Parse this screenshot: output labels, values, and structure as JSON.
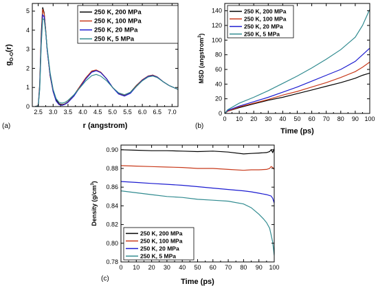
{
  "figure": {
    "panel_labels": [
      "(a)",
      "(b)",
      "(c)"
    ]
  },
  "series_colors": [
    "#000000",
    "#c8391a",
    "#1a1ad0",
    "#2f8a8f"
  ],
  "chart_data": [
    {
      "panel": "(a)",
      "type": "line",
      "xlabel": "r (angstrom)",
      "ylabel": "g",
      "ylabel_sub": "O-O",
      "ylabel_suffix": "(r)",
      "xlim": [
        2.3,
        7.2
      ],
      "ylim": [
        0,
        5.4
      ],
      "xticks": [
        "2.5",
        "3.0",
        "3.5",
        "4.0",
        "4.5",
        "5.0",
        "5.5",
        "6.0",
        "6.5",
        "7.0"
      ],
      "xtick_values": [
        2.5,
        3.0,
        3.5,
        4.0,
        4.5,
        5.0,
        5.5,
        6.0,
        6.5,
        7.0
      ],
      "yticks": [
        "0",
        "1",
        "2",
        "3",
        "4",
        "5"
      ],
      "ytick_values": [
        0,
        1,
        2,
        3,
        4,
        5
      ],
      "legend_position": "top-right",
      "series": [
        {
          "name": "250 K, 200 MPa",
          "x": [
            2.4,
            2.5,
            2.55,
            2.6,
            2.65,
            2.7,
            2.75,
            2.8,
            2.9,
            3.0,
            3.1,
            3.2,
            3.3,
            3.4,
            3.5,
            3.7,
            3.9,
            4.1,
            4.3,
            4.45,
            4.6,
            4.8,
            5.0,
            5.2,
            5.4,
            5.6,
            5.8,
            6.0,
            6.2,
            6.35,
            6.5,
            6.7,
            6.9,
            7.2
          ],
          "y": [
            0,
            0.05,
            1.2,
            3.8,
            5.2,
            4.9,
            4.0,
            3.0,
            1.6,
            0.8,
            0.35,
            0.15,
            0.1,
            0.14,
            0.25,
            0.6,
            1.05,
            1.5,
            1.85,
            1.9,
            1.8,
            1.45,
            1.0,
            0.7,
            0.6,
            0.75,
            1.1,
            1.4,
            1.6,
            1.65,
            1.55,
            1.3,
            1.1,
            0.9
          ]
        },
        {
          "name": "250 K, 100 MPa",
          "x": [
            2.4,
            2.5,
            2.55,
            2.6,
            2.65,
            2.7,
            2.75,
            2.8,
            2.9,
            3.0,
            3.1,
            3.2,
            3.3,
            3.4,
            3.5,
            3.7,
            3.9,
            4.1,
            4.3,
            4.45,
            4.6,
            4.8,
            5.0,
            5.2,
            5.4,
            5.6,
            5.8,
            6.0,
            6.2,
            6.35,
            6.5,
            6.7,
            6.9,
            7.2
          ],
          "y": [
            0,
            0.05,
            1.1,
            3.6,
            5.1,
            4.85,
            4.0,
            3.0,
            1.6,
            0.78,
            0.3,
            0.12,
            0.08,
            0.13,
            0.24,
            0.58,
            1.05,
            1.5,
            1.86,
            1.92,
            1.8,
            1.45,
            1.0,
            0.68,
            0.58,
            0.73,
            1.08,
            1.4,
            1.6,
            1.64,
            1.55,
            1.3,
            1.1,
            0.9
          ]
        },
        {
          "name": "250 K, 20 MPa",
          "x": [
            2.4,
            2.5,
            2.55,
            2.6,
            2.65,
            2.7,
            2.75,
            2.8,
            2.9,
            3.0,
            3.1,
            3.2,
            3.3,
            3.4,
            3.5,
            3.7,
            3.9,
            4.1,
            4.3,
            4.45,
            4.6,
            4.8,
            5.0,
            5.2,
            5.4,
            5.6,
            5.8,
            6.0,
            6.2,
            6.35,
            6.5,
            6.7,
            6.9,
            7.2
          ],
          "y": [
            0,
            0.04,
            1.0,
            3.4,
            4.8,
            4.7,
            3.9,
            3.0,
            1.65,
            0.8,
            0.3,
            0.1,
            0.06,
            0.12,
            0.22,
            0.55,
            1.0,
            1.45,
            1.8,
            1.88,
            1.78,
            1.45,
            1.0,
            0.66,
            0.55,
            0.7,
            1.05,
            1.38,
            1.58,
            1.62,
            1.54,
            1.3,
            1.1,
            0.9
          ]
        },
        {
          "name": "250 K, 5 MPa",
          "x": [
            2.4,
            2.5,
            2.55,
            2.6,
            2.65,
            2.7,
            2.75,
            2.8,
            2.9,
            3.0,
            3.1,
            3.2,
            3.3,
            3.4,
            3.5,
            3.7,
            3.9,
            4.1,
            4.3,
            4.45,
            4.6,
            4.8,
            5.0,
            5.2,
            5.4,
            5.6,
            5.8,
            6.0,
            6.2,
            6.35,
            6.5,
            6.7,
            6.9,
            7.2
          ],
          "y": [
            0,
            0.04,
            0.9,
            3.2,
            4.6,
            4.55,
            3.9,
            3.1,
            1.75,
            0.9,
            0.42,
            0.22,
            0.18,
            0.22,
            0.32,
            0.62,
            0.98,
            1.35,
            1.62,
            1.68,
            1.6,
            1.35,
            1.0,
            0.72,
            0.62,
            0.75,
            1.05,
            1.35,
            1.55,
            1.6,
            1.52,
            1.3,
            1.1,
            0.9
          ]
        }
      ]
    },
    {
      "panel": "(b)",
      "type": "line",
      "xlabel": "Time (ps)",
      "ylabel": "MSD (angstrom",
      "ylabel_sup": "2",
      "ylabel_suffix": ")",
      "xlim": [
        0,
        100
      ],
      "ylim": [
        0,
        150
      ],
      "xticks": [
        "0",
        "10",
        "20",
        "30",
        "40",
        "50",
        "60",
        "70",
        "80",
        "90",
        "100"
      ],
      "xtick_values": [
        0,
        10,
        20,
        30,
        40,
        50,
        60,
        70,
        80,
        90,
        100
      ],
      "yticks": [
        "0",
        "20",
        "40",
        "60",
        "80",
        "100",
        "120",
        "140"
      ],
      "ytick_values": [
        0,
        20,
        40,
        60,
        80,
        100,
        120,
        140
      ],
      "legend_position": "top-left",
      "series": [
        {
          "name": "250 K, 200 MPa",
          "x": [
            0,
            2,
            10,
            20,
            30,
            40,
            50,
            60,
            70,
            80,
            90,
            95,
            100
          ],
          "y": [
            0,
            3,
            8,
            13,
            18,
            22,
            27,
            32,
            37,
            42,
            48,
            52,
            55
          ]
        },
        {
          "name": "250 K, 100 MPa",
          "x": [
            0,
            2,
            10,
            20,
            30,
            40,
            50,
            60,
            70,
            80,
            90,
            95,
            100
          ],
          "y": [
            0,
            3,
            9,
            14,
            19,
            25,
            30,
            36,
            42,
            49,
            57,
            63,
            70
          ]
        },
        {
          "name": "250 K, 20 MPa",
          "x": [
            0,
            2,
            10,
            20,
            30,
            40,
            50,
            60,
            70,
            80,
            90,
            95,
            100
          ],
          "y": [
            0,
            4,
            10,
            16,
            22,
            29,
            36,
            44,
            52,
            60,
            71,
            80,
            89
          ]
        },
        {
          "name": "250 K, 5 MPa",
          "x": [
            0,
            2,
            10,
            20,
            30,
            40,
            50,
            60,
            70,
            80,
            90,
            95,
            100
          ],
          "y": [
            0,
            5,
            14,
            22,
            31,
            41,
            51,
            62,
            74,
            87,
            104,
            120,
            142
          ]
        }
      ]
    },
    {
      "panel": "(c)",
      "type": "line",
      "xlabel": "Time (ps)",
      "ylabel": "Density (g/cm",
      "ylabel_sup": "3",
      "ylabel_suffix": ")",
      "xlim": [
        0,
        100
      ],
      "ylim": [
        0.78,
        0.905
      ],
      "xticks": [
        "0",
        "10",
        "20",
        "30",
        "40",
        "50",
        "60",
        "70",
        "80",
        "90",
        "100"
      ],
      "xtick_values": [
        0,
        10,
        20,
        30,
        40,
        50,
        60,
        70,
        80,
        90,
        100
      ],
      "yticks": [
        "0.78",
        "0.80",
        "0.82",
        "0.84",
        "0.86",
        "0.88",
        "0.90"
      ],
      "ytick_values": [
        0.78,
        0.8,
        0.82,
        0.84,
        0.86,
        0.88,
        0.9
      ],
      "legend_position": "bottom-left",
      "series": [
        {
          "name": "250 K, 200 MPa",
          "x": [
            0,
            10,
            20,
            30,
            40,
            50,
            60,
            70,
            80,
            85,
            90,
            95,
            97,
            98,
            99,
            100
          ],
          "y": [
            0.9,
            0.8995,
            0.899,
            0.899,
            0.8985,
            0.898,
            0.8985,
            0.8975,
            0.8955,
            0.896,
            0.8965,
            0.897,
            0.898,
            0.9,
            0.897,
            0.901
          ]
        },
        {
          "name": "250 K, 100 MPa",
          "x": [
            0,
            10,
            20,
            30,
            40,
            50,
            60,
            70,
            80,
            85,
            90,
            95,
            97,
            98,
            99,
            100
          ],
          "y": [
            0.883,
            0.8825,
            0.882,
            0.8815,
            0.881,
            0.88,
            0.88,
            0.879,
            0.878,
            0.8785,
            0.8785,
            0.879,
            0.88,
            0.882,
            0.881,
            0.879
          ]
        },
        {
          "name": "250 K, 20 MPa",
          "x": [
            0,
            10,
            20,
            30,
            40,
            50,
            60,
            70,
            80,
            85,
            90,
            95,
            97,
            98,
            99,
            100
          ],
          "y": [
            0.866,
            0.865,
            0.864,
            0.863,
            0.862,
            0.8605,
            0.859,
            0.8575,
            0.856,
            0.855,
            0.8535,
            0.852,
            0.851,
            0.8505,
            0.848,
            0.843
          ]
        },
        {
          "name": "250 K, 5 MPa",
          "x": [
            0,
            10,
            20,
            30,
            40,
            50,
            60,
            70,
            80,
            85,
            90,
            93,
            95,
            97,
            98,
            99,
            100
          ],
          "y": [
            0.856,
            0.854,
            0.852,
            0.85,
            0.849,
            0.847,
            0.846,
            0.845,
            0.842,
            0.838,
            0.831,
            0.826,
            0.822,
            0.816,
            0.809,
            0.801,
            0.787
          ]
        }
      ]
    }
  ]
}
